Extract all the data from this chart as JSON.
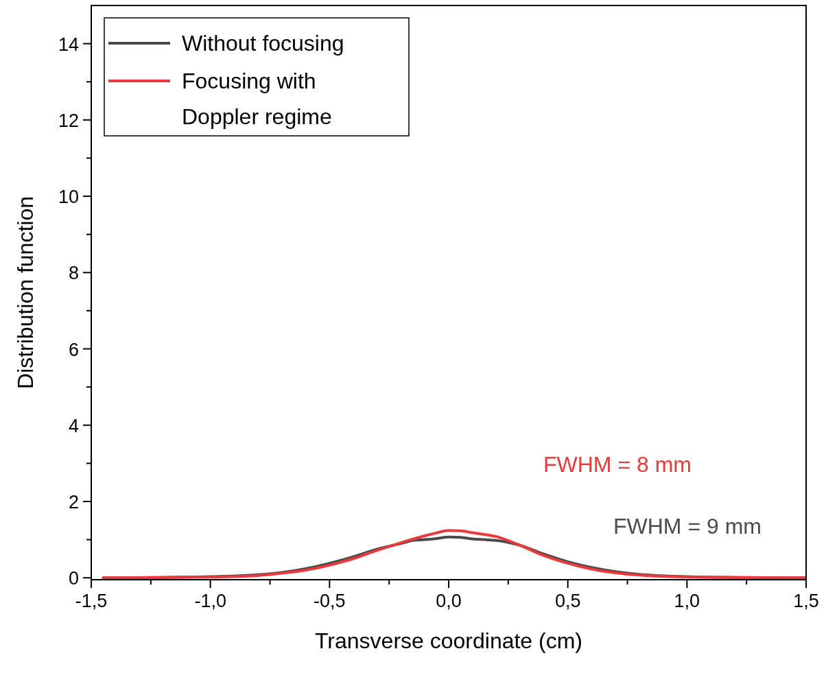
{
  "chart_data": {
    "type": "line",
    "xlabel": "Transverse coordinate (cm)",
    "ylabel": "Distribution function",
    "xlim": [
      -1.5,
      1.5
    ],
    "ylim": [
      -0.05,
      15
    ],
    "xticks": [
      {
        "value": -1.5,
        "label": "-1,5"
      },
      {
        "value": -1.25,
        "label": null
      },
      {
        "value": -1,
        "label": "-1,0"
      },
      {
        "value": -0.75,
        "label": null
      },
      {
        "value": -0.5,
        "label": "-0,5"
      },
      {
        "value": -0.25,
        "label": null
      },
      {
        "value": 0,
        "label": "0,0"
      },
      {
        "value": 0.25,
        "label": null
      },
      {
        "value": 0.5,
        "label": "0,5"
      },
      {
        "value": 0.75,
        "label": null
      },
      {
        "value": 1,
        "label": "1,0"
      },
      {
        "value": 1.25,
        "label": null
      },
      {
        "value": 1.5,
        "label": "1,5"
      }
    ],
    "yticks": [
      0,
      {
        "value": 1,
        "label": null
      },
      2,
      {
        "value": 3,
        "label": null
      },
      4,
      {
        "value": 5,
        "label": null
      },
      6,
      {
        "value": 7,
        "label": null
      },
      8,
      {
        "value": 9,
        "label": null
      },
      10,
      {
        "value": 11,
        "label": null
      },
      12,
      {
        "value": 13,
        "label": null
      },
      14
    ],
    "grid": false,
    "legend": "top left",
    "line_style": "solid",
    "series": [
      {
        "name": "Without focusing",
        "color": "#4a4a4a",
        "x": [
          -1.45,
          -1.2,
          -1.0,
          -0.8,
          -0.7,
          -0.6,
          -0.5,
          -0.4,
          -0.3,
          -0.2,
          -0.15,
          -0.1,
          -0.05,
          0,
          0.05,
          0.1,
          0.15,
          0.2,
          0.3,
          0.4,
          0.5,
          0.6,
          0.7,
          0.8,
          1.0,
          1.2,
          1.5
        ],
        "values": [
          0,
          0.01,
          0.03,
          0.08,
          0.14,
          0.24,
          0.38,
          0.55,
          0.75,
          0.9,
          0.98,
          1.0,
          1.03,
          1.07,
          1.06,
          1.02,
          1.0,
          0.98,
          0.85,
          0.62,
          0.42,
          0.27,
          0.16,
          0.09,
          0.03,
          0.01,
          0
        ]
      },
      {
        "name": "Focusing with Doppler regime",
        "color": "#e8393c",
        "x": [
          -1.45,
          -1.2,
          -1.0,
          -0.8,
          -0.7,
          -0.6,
          -0.5,
          -0.4,
          -0.3,
          -0.2,
          -0.1,
          -0.05,
          0,
          0.05,
          0.1,
          0.2,
          0.3,
          0.4,
          0.5,
          0.6,
          0.7,
          0.8,
          1.0,
          1.2,
          1.5
        ],
        "values": [
          0,
          0.01,
          0.02,
          0.06,
          0.12,
          0.2,
          0.33,
          0.5,
          0.72,
          0.92,
          1.1,
          1.18,
          1.24,
          1.23,
          1.18,
          1.08,
          0.85,
          0.58,
          0.38,
          0.23,
          0.13,
          0.07,
          0.02,
          0.01,
          0
        ]
      }
    ],
    "annotations": [
      "FWHM = 8 mm",
      "FWHM = 9 mm"
    ]
  }
}
